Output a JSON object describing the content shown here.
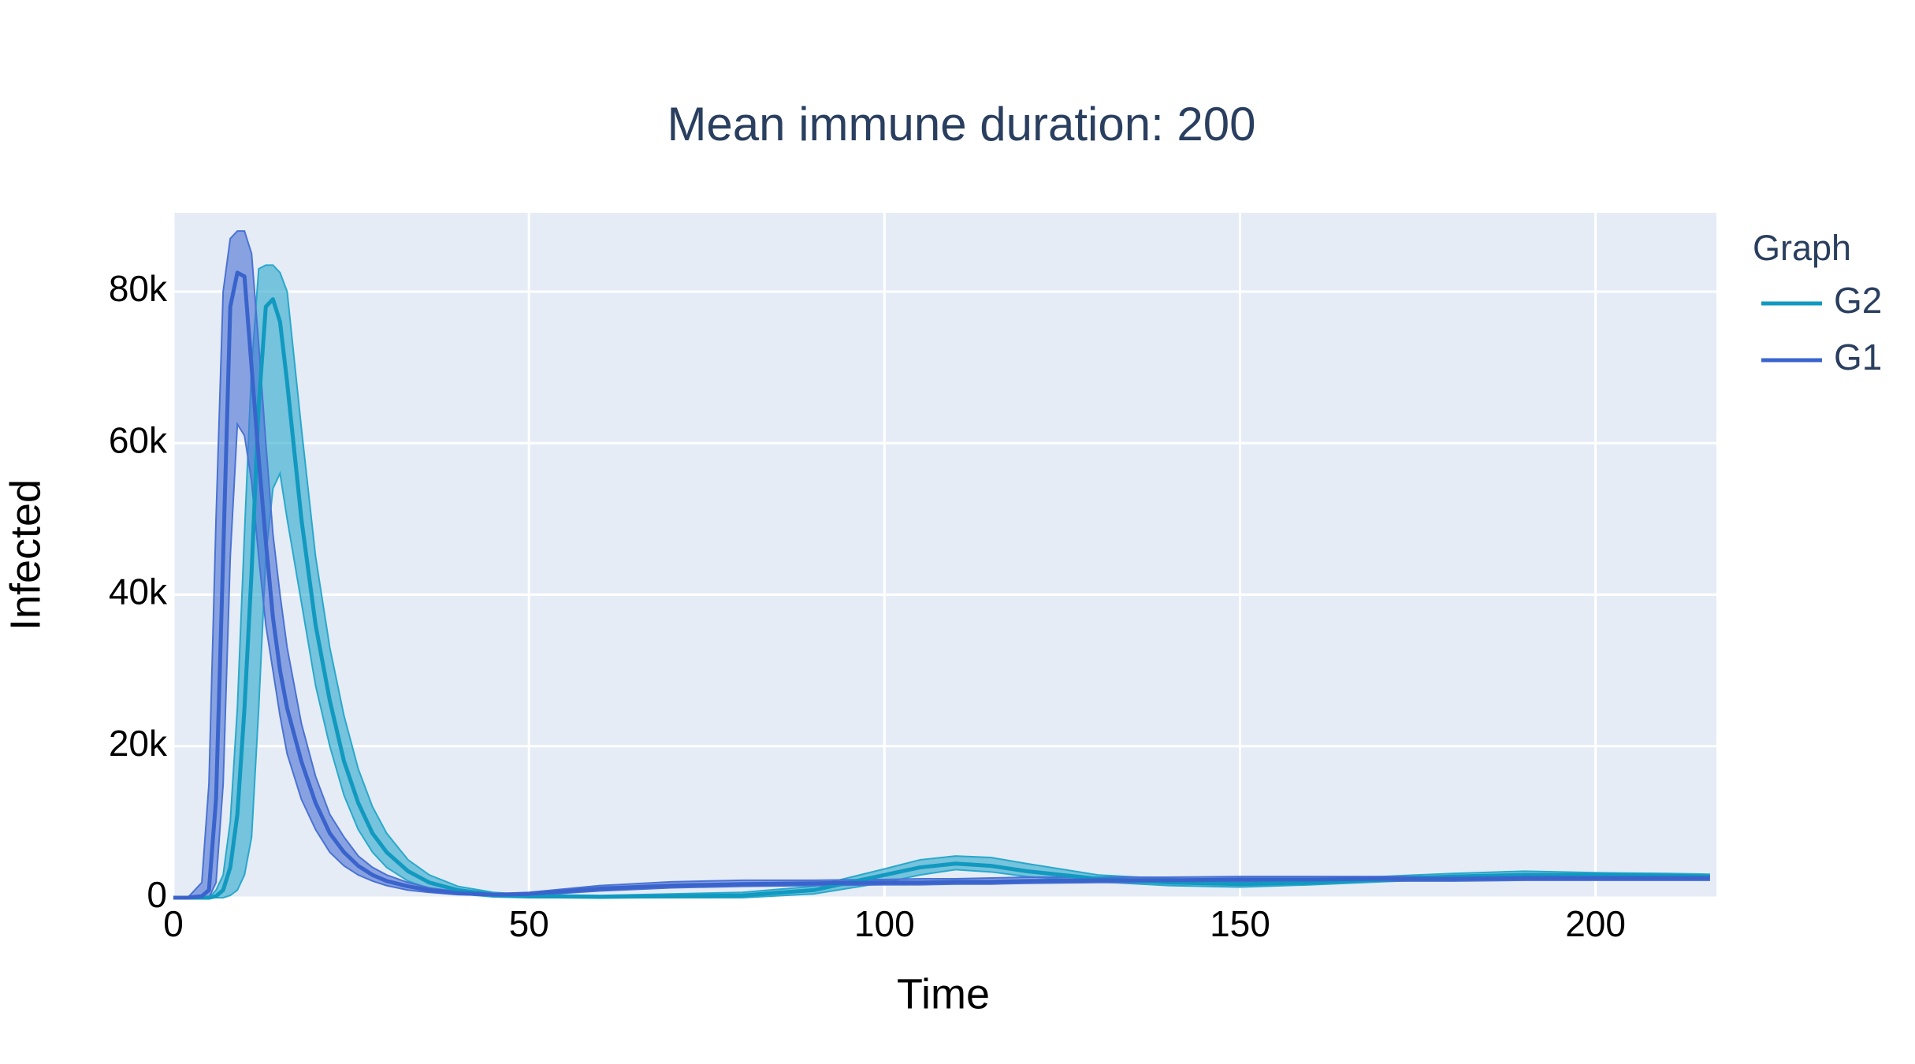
{
  "chart_data": {
    "type": "line",
    "title": "Mean immune duration: 200",
    "x_label": "Time",
    "y_label": "Infected",
    "legend_title": "Graph",
    "x": [
      0,
      2,
      4,
      5,
      6,
      7,
      8,
      9,
      10,
      11,
      12,
      13,
      14,
      15,
      16,
      18,
      20,
      22,
      24,
      26,
      28,
      30,
      33,
      36,
      40,
      45,
      50,
      60,
      70,
      80,
      90,
      100,
      105,
      110,
      115,
      120,
      130,
      140,
      150,
      160,
      170,
      180,
      190,
      200,
      210,
      216
    ],
    "series": [
      {
        "name": "G2",
        "color": "#1199c0",
        "band_color": "#2aa8cc",
        "values": [
          0,
          0,
          0,
          0,
          200,
          1000,
          4000,
          11000,
          25000,
          43000,
          65000,
          78000,
          79000,
          76000,
          68000,
          50000,
          36000,
          26000,
          18000,
          12500,
          8500,
          6000,
          3500,
          2000,
          1000,
          400,
          200,
          100,
          200,
          300,
          1000,
          3000,
          4000,
          4500,
          4200,
          3500,
          2500,
          2000,
          1800,
          2000,
          2400,
          2800,
          3000,
          3000,
          2900,
          2800
        ],
        "upper": [
          0,
          0,
          0,
          0,
          1000,
          3000,
          10000,
          25000,
          48000,
          70000,
          83000,
          83500,
          83500,
          82500,
          80000,
          62000,
          45000,
          33000,
          24000,
          17000,
          12000,
          8500,
          5000,
          3000,
          1500,
          700,
          400,
          300,
          500,
          700,
          1500,
          3800,
          5000,
          5500,
          5300,
          4500,
          3000,
          2500,
          2200,
          2400,
          2800,
          3200,
          3500,
          3300,
          3200,
          3100
        ],
        "lower": [
          0,
          0,
          0,
          0,
          0,
          0,
          300,
          1000,
          3000,
          8000,
          25000,
          45000,
          54000,
          56000,
          50000,
          39000,
          28000,
          20000,
          13500,
          9000,
          6000,
          4000,
          2200,
          1200,
          500,
          100,
          0,
          0,
          0,
          0,
          500,
          2000,
          3000,
          3700,
          3400,
          2800,
          2100,
          1600,
          1400,
          1700,
          2100,
          2500,
          2700,
          2700,
          2600,
          2500
        ]
      },
      {
        "name": "G1",
        "color": "#3a64cc",
        "band_color": "#4a72d4",
        "values": [
          0,
          0,
          200,
          1000,
          13000,
          45000,
          78000,
          82500,
          82000,
          70000,
          58000,
          47000,
          37000,
          30000,
          25000,
          18000,
          12500,
          8500,
          6000,
          4200,
          3000,
          2200,
          1500,
          1000,
          600,
          400,
          500,
          1200,
          1600,
          1800,
          1900,
          2000,
          2000,
          2100,
          2100,
          2200,
          2300,
          2300,
          2400,
          2400,
          2500,
          2500,
          2600,
          2600,
          2600,
          2600
        ],
        "upper": [
          0,
          0,
          2000,
          15000,
          50000,
          80000,
          87000,
          88000,
          88000,
          85000,
          73000,
          60000,
          48000,
          40000,
          33000,
          23000,
          16000,
          11000,
          8000,
          5500,
          4000,
          3000,
          2000,
          1300,
          800,
          500,
          700,
          1600,
          2100,
          2300,
          2300,
          2400,
          2500,
          2500,
          2600,
          2700,
          2700,
          2700,
          2800,
          2800,
          2800,
          2800,
          2900,
          2900,
          2900,
          2900
        ],
        "lower": [
          0,
          0,
          0,
          0,
          2000,
          15000,
          45000,
          62500,
          61000,
          55000,
          45000,
          36000,
          30000,
          24000,
          19000,
          13000,
          9000,
          6000,
          4200,
          3000,
          2200,
          1600,
          1000,
          700,
          400,
          300,
          300,
          900,
          1300,
          1500,
          1600,
          1700,
          1700,
          1800,
          1800,
          1900,
          2000,
          2000,
          2100,
          2100,
          2200,
          2200,
          2300,
          2300,
          2300,
          2300
        ]
      }
    ],
    "xlim": [
      0,
      217
    ],
    "ylim": [
      0,
      90400
    ],
    "xticks": [
      0,
      50,
      100,
      150,
      200
    ],
    "yticks": [
      0,
      {
        "value": 20000,
        "label": "20k"
      },
      {
        "value": 40000,
        "label": "40k"
      },
      {
        "value": 60000,
        "label": "60k"
      },
      {
        "value": 80000,
        "label": "80k"
      }
    ],
    "grid": true
  }
}
